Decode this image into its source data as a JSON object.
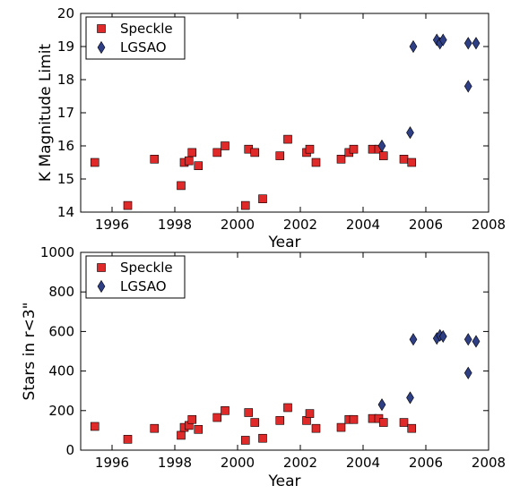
{
  "colors": {
    "speckle": "#e02a2a",
    "lgsao": "#2f3f86",
    "edge": "#000000"
  },
  "chart_data": [
    {
      "type": "scatter",
      "title": "",
      "xlabel": "Year",
      "ylabel": "K Magnitude Limit",
      "xlim": [
        1995,
        2008
      ],
      "ylim": [
        14,
        20
      ],
      "xticks": [
        "1996",
        "1998",
        "2000",
        "2002",
        "2004",
        "2006",
        "2008"
      ],
      "yticks": [
        "14",
        "15",
        "16",
        "17",
        "18",
        "19",
        "20"
      ],
      "legend": "top-left",
      "series": [
        {
          "name": "Speckle",
          "marker": "square",
          "points": [
            [
              1995.45,
              15.5
            ],
            [
              1996.5,
              14.2
            ],
            [
              1997.35,
              15.6
            ],
            [
              1998.2,
              14.8
            ],
            [
              1998.3,
              15.5
            ],
            [
              1998.45,
              15.55
            ],
            [
              1998.55,
              15.8
            ],
            [
              1998.75,
              15.4
            ],
            [
              1999.35,
              15.8
            ],
            [
              1999.6,
              16.0
            ],
            [
              2000.25,
              14.2
            ],
            [
              2000.35,
              15.9
            ],
            [
              2000.55,
              15.8
            ],
            [
              2000.8,
              14.4
            ],
            [
              2001.35,
              15.7
            ],
            [
              2001.6,
              16.2
            ],
            [
              2002.2,
              15.8
            ],
            [
              2002.3,
              15.9
            ],
            [
              2002.5,
              15.5
            ],
            [
              2003.3,
              15.6
            ],
            [
              2003.55,
              15.8
            ],
            [
              2003.7,
              15.9
            ],
            [
              2004.3,
              15.9
            ],
            [
              2004.5,
              15.9
            ],
            [
              2004.65,
              15.7
            ],
            [
              2005.3,
              15.6
            ],
            [
              2005.55,
              15.5
            ]
          ]
        },
        {
          "name": "LGSAO",
          "marker": "diamond",
          "points": [
            [
              2004.6,
              16.0
            ],
            [
              2005.5,
              16.4
            ],
            [
              2005.6,
              19.0
            ],
            [
              2006.35,
              19.2
            ],
            [
              2006.45,
              19.1
            ],
            [
              2006.55,
              19.2
            ],
            [
              2007.35,
              19.1
            ],
            [
              2007.35,
              17.8
            ],
            [
              2007.6,
              19.1
            ]
          ]
        }
      ]
    },
    {
      "type": "scatter",
      "title": "",
      "xlabel": "Year",
      "ylabel": "Stars in r<3\"",
      "xlim": [
        1995,
        2008
      ],
      "ylim": [
        0,
        1000
      ],
      "xticks": [
        "1996",
        "1998",
        "2000",
        "2002",
        "2004",
        "2006",
        "2008"
      ],
      "yticks": [
        "0",
        "200",
        "400",
        "600",
        "800",
        "1000"
      ],
      "legend": "top-left",
      "series": [
        {
          "name": "Speckle",
          "marker": "square",
          "points": [
            [
              1995.45,
              120
            ],
            [
              1996.5,
              55
            ],
            [
              1997.35,
              110
            ],
            [
              1998.2,
              75
            ],
            [
              1998.3,
              115
            ],
            [
              1998.45,
              125
            ],
            [
              1998.55,
              155
            ],
            [
              1998.75,
              105
            ],
            [
              1999.35,
              165
            ],
            [
              1999.6,
              200
            ],
            [
              2000.25,
              50
            ],
            [
              2000.35,
              190
            ],
            [
              2000.55,
              140
            ],
            [
              2000.8,
              60
            ],
            [
              2001.35,
              150
            ],
            [
              2001.6,
              215
            ],
            [
              2002.2,
              150
            ],
            [
              2002.3,
              185
            ],
            [
              2002.5,
              110
            ],
            [
              2003.3,
              115
            ],
            [
              2003.55,
              155
            ],
            [
              2003.7,
              155
            ],
            [
              2004.3,
              160
            ],
            [
              2004.5,
              160
            ],
            [
              2004.65,
              140
            ],
            [
              2005.3,
              140
            ],
            [
              2005.55,
              110
            ]
          ]
        },
        {
          "name": "LGSAO",
          "marker": "diamond",
          "points": [
            [
              2004.6,
              230
            ],
            [
              2005.5,
              265
            ],
            [
              2005.6,
              560
            ],
            [
              2006.35,
              565
            ],
            [
              2006.45,
              580
            ],
            [
              2006.55,
              575
            ],
            [
              2007.35,
              560
            ],
            [
              2007.35,
              390
            ],
            [
              2007.6,
              550
            ]
          ]
        }
      ]
    }
  ]
}
